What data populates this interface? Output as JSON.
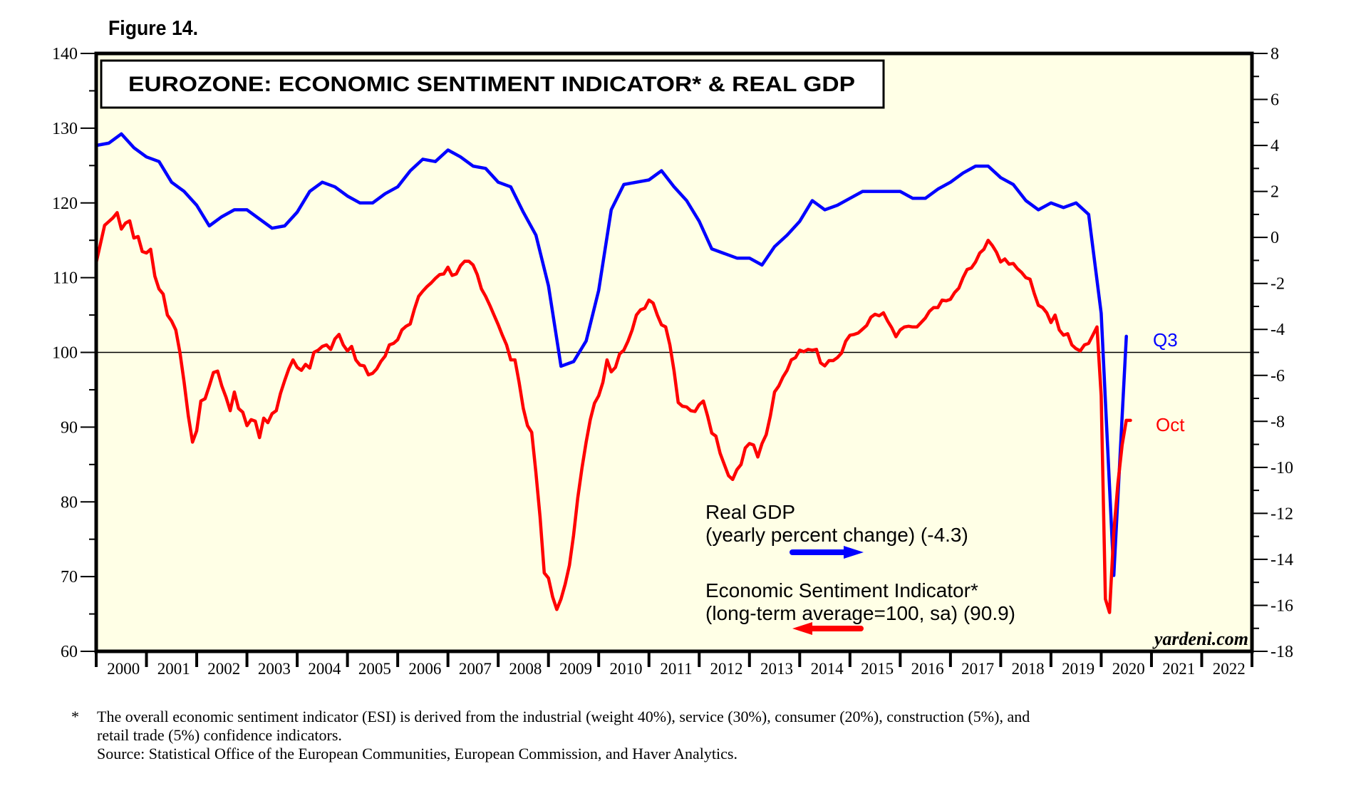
{
  "figure_label": "Figure 14.",
  "footnote": {
    "marker": "*",
    "line1": "The overall economic sentiment indicator (ESI) is derived from the industrial (weight 40%), service (30%), consumer (20%), construction (5%), and",
    "line2": "retail trade (5%) confidence indicators.",
    "source": "Source: Statistical Office of the European Communities, European Commission, and Haver Analytics."
  },
  "chart_data": {
    "type": "line",
    "title": "EUROZONE: ECONOMIC SENTIMENT INDICATOR* & REAL GDP",
    "watermark": "yardeni.com",
    "x_tick_labels": [
      "2000",
      "2001",
      "2002",
      "2003",
      "2004",
      "2005",
      "2006",
      "2007",
      "2008",
      "2009",
      "2010",
      "2011",
      "2012",
      "2013",
      "2014",
      "2015",
      "2016",
      "2017",
      "2018",
      "2019",
      "2020",
      "2021",
      "2022"
    ],
    "xlim": [
      2000,
      2023
    ],
    "y_left": {
      "label": "",
      "lim": [
        60,
        140
      ],
      "ticks": [
        60,
        70,
        80,
        90,
        100,
        110,
        120,
        130,
        140
      ],
      "minor_step": 5
    },
    "y_right": {
      "label": "",
      "lim": [
        -18,
        8
      ],
      "ticks": [
        -18,
        -16,
        -14,
        -12,
        -10,
        -8,
        -6,
        -4,
        -2,
        0,
        2,
        4,
        6,
        8
      ],
      "minor_step": 1
    },
    "reference_line": {
      "axis": "left",
      "value": 100
    },
    "grid": false,
    "colors": {
      "background": "#ffffe6",
      "gdp": "#0000ff",
      "esi": "#ff0000",
      "axis": "#000000"
    },
    "series": [
      {
        "name": "Real GDP",
        "legend_line1": "Real GDP",
        "legend_line2": "(yearly percent change) (-4.3)",
        "axis": "right",
        "arrow": "right",
        "end_label": "Q3",
        "frequency": "quarterly",
        "x": [
          2000.0,
          2000.25,
          2000.5,
          2000.75,
          2001.0,
          2001.25,
          2001.5,
          2001.75,
          2002.0,
          2002.25,
          2002.5,
          2002.75,
          2003.0,
          2003.25,
          2003.5,
          2003.75,
          2004.0,
          2004.25,
          2004.5,
          2004.75,
          2005.0,
          2005.25,
          2005.5,
          2005.75,
          2006.0,
          2006.25,
          2006.5,
          2006.75,
          2007.0,
          2007.25,
          2007.5,
          2007.75,
          2008.0,
          2008.25,
          2008.5,
          2008.75,
          2009.0,
          2009.25,
          2009.5,
          2009.75,
          2010.0,
          2010.25,
          2010.5,
          2010.75,
          2011.0,
          2011.25,
          2011.5,
          2011.75,
          2012.0,
          2012.25,
          2012.5,
          2012.75,
          2013.0,
          2013.25,
          2013.5,
          2013.75,
          2014.0,
          2014.25,
          2014.5,
          2014.75,
          2015.0,
          2015.25,
          2015.5,
          2015.75,
          2016.0,
          2016.25,
          2016.5,
          2016.75,
          2017.0,
          2017.25,
          2017.5,
          2017.75,
          2018.0,
          2018.25,
          2018.5,
          2018.75,
          2019.0,
          2019.25,
          2019.5,
          2019.75,
          2020.0,
          2020.25,
          2020.5
        ],
        "values": [
          4.0,
          4.1,
          4.5,
          3.9,
          3.5,
          3.3,
          2.4,
          2.0,
          1.4,
          0.5,
          0.9,
          1.2,
          1.2,
          0.8,
          0.4,
          0.5,
          1.1,
          2.0,
          2.4,
          2.2,
          1.8,
          1.5,
          1.5,
          1.9,
          2.2,
          2.9,
          3.4,
          3.3,
          3.8,
          3.5,
          3.1,
          3.0,
          2.4,
          2.2,
          1.1,
          0.1,
          -2.1,
          -5.6,
          -5.4,
          -4.5,
          -2.3,
          1.2,
          2.3,
          2.4,
          2.5,
          2.9,
          2.2,
          1.6,
          0.7,
          -0.5,
          -0.7,
          -0.9,
          -0.9,
          -1.2,
          -0.4,
          0.1,
          0.7,
          1.6,
          1.2,
          1.4,
          1.7,
          2.0,
          2.0,
          2.0,
          2.0,
          1.7,
          1.7,
          2.1,
          2.4,
          2.8,
          3.1,
          3.1,
          2.6,
          2.3,
          1.6,
          1.2,
          1.5,
          1.3,
          1.5,
          1.0,
          -3.3,
          -14.7,
          -4.3
        ]
      },
      {
        "name": "Economic Sentiment Indicator",
        "legend_line1": "Economic Sentiment Indicator*",
        "legend_line2": "(long-term average=100, sa) (90.9)",
        "axis": "left",
        "arrow": "left",
        "end_label": "Oct",
        "frequency": "monthly",
        "x_start": 2000.0,
        "x_step": 0.08333,
        "values": [
          112.0,
          114.5,
          117.0,
          117.5,
          118.0,
          118.7,
          116.5,
          117.3,
          117.6,
          115.3,
          115.5,
          113.5,
          113.3,
          113.8,
          110.2,
          108.5,
          107.8,
          105.0,
          104.2,
          103.0,
          100.0,
          96.0,
          91.5,
          88.0,
          89.5,
          93.5,
          93.8,
          95.5,
          97.3,
          97.5,
          95.5,
          94.0,
          92.2,
          94.7,
          92.5,
          92.0,
          90.2,
          91.0,
          90.8,
          88.6,
          91.2,
          90.6,
          91.8,
          92.2,
          94.5,
          96.2,
          97.8,
          99.0,
          98.0,
          97.6,
          98.4,
          97.9,
          100.0,
          100.3,
          100.8,
          101.0,
          100.4,
          101.8,
          102.4,
          101.0,
          100.2,
          100.8,
          99.0,
          98.3,
          98.2,
          97.0,
          97.2,
          97.8,
          98.8,
          99.5,
          101.0,
          101.2,
          101.7,
          103.0,
          103.5,
          103.8,
          105.8,
          107.5,
          108.2,
          108.8,
          109.3,
          109.9,
          110.4,
          110.5,
          111.4,
          110.3,
          110.5,
          111.6,
          112.2,
          112.2,
          111.7,
          110.4,
          108.5,
          107.5,
          106.3,
          105.0,
          103.7,
          102.3,
          101.0,
          99.0,
          99.0,
          96.0,
          92.5,
          90.2,
          89.3,
          84.0,
          78.0,
          70.5,
          69.8,
          67.3,
          65.6,
          67.0,
          69.0,
          71.5,
          75.5,
          80.5,
          84.5,
          88.0,
          91.0,
          93.2,
          94.2,
          96.0,
          99.0,
          97.4,
          98.0,
          99.8,
          100.3,
          101.5,
          103.0,
          105.0,
          105.7,
          105.9,
          107.0,
          106.6,
          105.0,
          103.7,
          103.4,
          101.0,
          97.5,
          93.3,
          92.8,
          92.7,
          92.2,
          92.1,
          93.0,
          93.5,
          91.5,
          89.2,
          88.8,
          86.5,
          85.0,
          83.5,
          83.0,
          84.3,
          85.0,
          87.2,
          87.8,
          87.6,
          86.0,
          87.8,
          89.0,
          91.5,
          94.7,
          95.5,
          96.7,
          97.6,
          99.0,
          99.3,
          100.3,
          100.1,
          100.4,
          100.3,
          100.4,
          98.6,
          98.2,
          98.9,
          98.9,
          99.3,
          99.9,
          101.5,
          102.3,
          102.4,
          102.6,
          103.1,
          103.6,
          104.7,
          105.1,
          104.9,
          105.3,
          104.2,
          103.3,
          102.1,
          103.0,
          103.4,
          103.5,
          103.4,
          103.4,
          104.0,
          104.6,
          105.5,
          106.0,
          106.0,
          107.0,
          106.9,
          107.1,
          108.0,
          108.6,
          110.0,
          111.1,
          111.3,
          112.1,
          113.3,
          113.8,
          115.0,
          114.3,
          113.4,
          112.1,
          112.5,
          111.8,
          111.9,
          111.2,
          110.7,
          110.0,
          109.8,
          107.9,
          106.3,
          106.0,
          105.3,
          104.0,
          105.0,
          103.0,
          102.3,
          102.5,
          101.0,
          100.5,
          100.2,
          101.0,
          101.2,
          102.3,
          103.4,
          94.2,
          67.0,
          65.2,
          75.8,
          82.5,
          87.6,
          90.9,
          90.9
        ]
      }
    ]
  }
}
